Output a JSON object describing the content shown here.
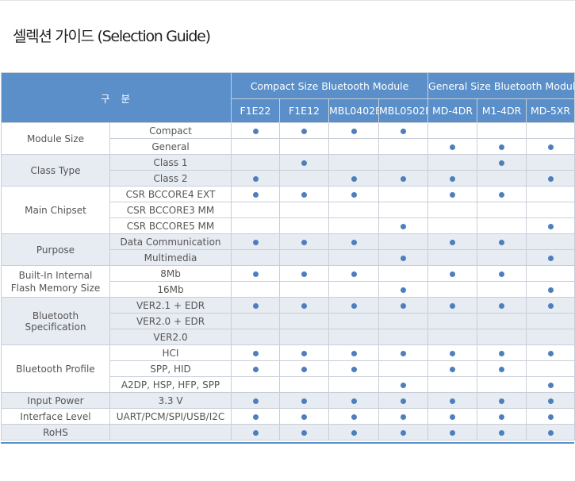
{
  "page_title": "셀렉션 가이드 (Selection Guide)",
  "header": {
    "category_label": "구분",
    "groups": [
      {
        "label": "Compact Size Bluetooth Module",
        "span": 4
      },
      {
        "label": "General Size Bluetooth Module",
        "span": 3
      }
    ],
    "models": [
      "F1E22",
      "F1E12",
      "MBL0402E",
      "MBL0502B",
      "MD-4DR",
      "M1-4DR",
      "MD-5XR"
    ]
  },
  "sections": [
    {
      "category": "Module Size",
      "shaded": false,
      "rows": [
        {
          "option": "Compact",
          "marks": [
            1,
            1,
            1,
            1,
            0,
            0,
            0
          ]
        },
        {
          "option": "General",
          "marks": [
            0,
            0,
            0,
            0,
            1,
            1,
            1
          ]
        }
      ]
    },
    {
      "category": "Class Type",
      "shaded": true,
      "rows": [
        {
          "option": "Class 1",
          "marks": [
            0,
            1,
            0,
            0,
            0,
            1,
            0
          ]
        },
        {
          "option": "Class 2",
          "marks": [
            1,
            0,
            1,
            1,
            1,
            0,
            1
          ]
        }
      ]
    },
    {
      "category": "Main Chipset",
      "shaded": false,
      "rows": [
        {
          "option": "CSR BCCORE4 EXT",
          "marks": [
            1,
            1,
            1,
            0,
            1,
            1,
            0
          ]
        },
        {
          "option": "CSR BCCORE3 MM",
          "marks": [
            0,
            0,
            0,
            0,
            0,
            0,
            0
          ]
        },
        {
          "option": "CSR BCCORE5 MM",
          "marks": [
            0,
            0,
            0,
            1,
            0,
            0,
            1
          ]
        }
      ]
    },
    {
      "category": "Purpose",
      "shaded": true,
      "rows": [
        {
          "option": "Data Communication",
          "marks": [
            1,
            1,
            1,
            0,
            1,
            1,
            0
          ]
        },
        {
          "option": "Multimedia",
          "marks": [
            0,
            0,
            0,
            1,
            0,
            0,
            1
          ]
        }
      ]
    },
    {
      "category": "Built-In Internal\nFlash Memory Size",
      "shaded": false,
      "rows": [
        {
          "option": "8Mb",
          "marks": [
            1,
            1,
            1,
            0,
            1,
            1,
            0
          ]
        },
        {
          "option": "16Mb",
          "marks": [
            0,
            0,
            0,
            1,
            0,
            0,
            1
          ]
        }
      ]
    },
    {
      "category": "Bluetooth Specification",
      "shaded": true,
      "rows": [
        {
          "option": "VER2.1 + EDR",
          "marks": [
            1,
            1,
            1,
            1,
            1,
            1,
            1
          ]
        },
        {
          "option": "VER2.0 + EDR",
          "marks": [
            0,
            0,
            0,
            0,
            0,
            0,
            0
          ]
        },
        {
          "option": "VER2.0",
          "marks": [
            0,
            0,
            0,
            0,
            0,
            0,
            0
          ]
        }
      ]
    },
    {
      "category": "Bluetooth Profile",
      "shaded": false,
      "rows": [
        {
          "option": "HCI",
          "marks": [
            1,
            1,
            1,
            1,
            1,
            1,
            1
          ]
        },
        {
          "option": "SPP, HID",
          "marks": [
            1,
            1,
            1,
            0,
            1,
            1,
            0
          ]
        },
        {
          "option": "A2DP, HSP, HFP, SPP",
          "marks": [
            0,
            0,
            0,
            1,
            0,
            0,
            1
          ]
        }
      ]
    },
    {
      "category": "Input Power",
      "shaded": true,
      "rows": [
        {
          "option": "3.3 V",
          "marks": [
            1,
            1,
            1,
            1,
            1,
            1,
            1
          ]
        }
      ]
    },
    {
      "category": "Interface Level",
      "shaded": false,
      "rows": [
        {
          "option": "UART/PCM/SPI/USB/I2C",
          "marks": [
            1,
            1,
            1,
            1,
            1,
            1,
            1
          ]
        }
      ]
    },
    {
      "category": "RoHS",
      "shaded": true,
      "rows": [
        {
          "option": "",
          "marks": [
            1,
            1,
            1,
            1,
            1,
            1,
            1
          ]
        }
      ]
    }
  ],
  "colors": {
    "header_bg": "#5a8fc9",
    "shade_bg": "#e7ebf2",
    "dot": "#4d7fbd",
    "border": "#c9cfd8"
  }
}
